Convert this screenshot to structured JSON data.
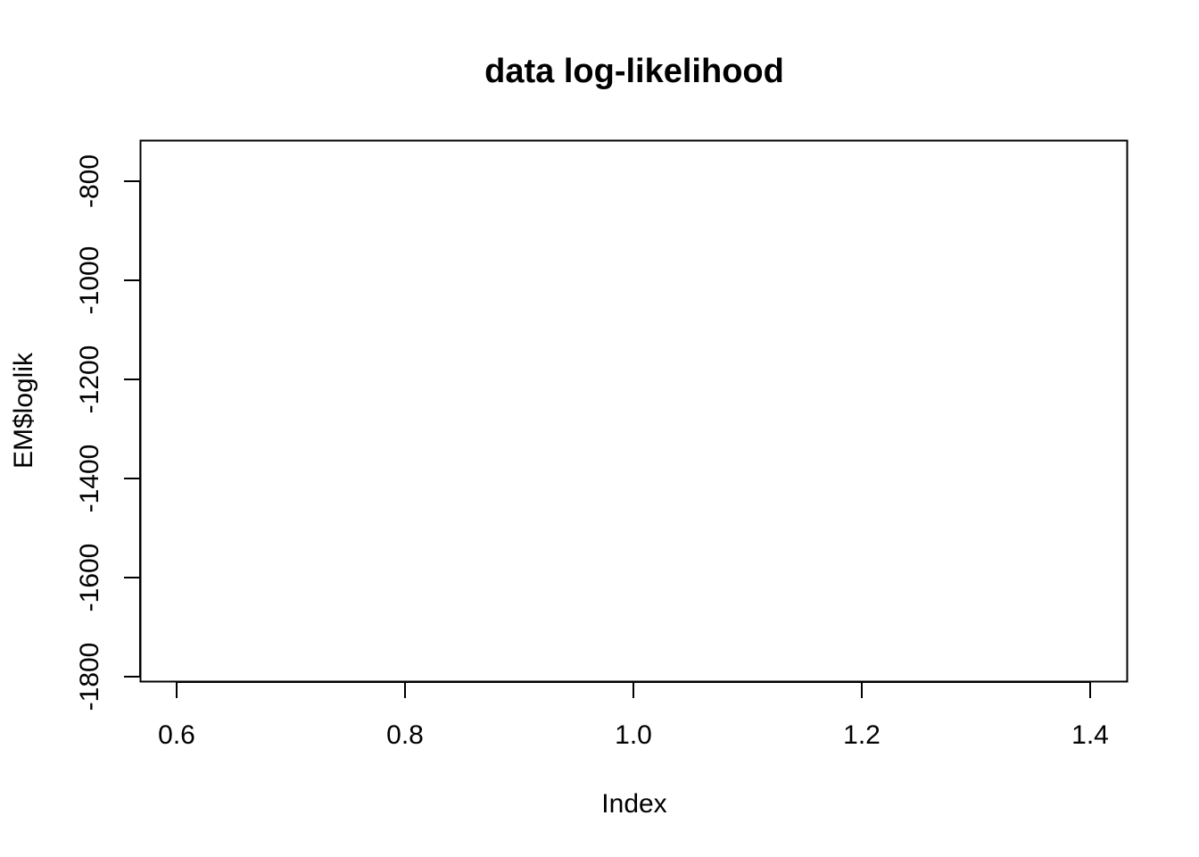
{
  "chart_data": {
    "type": "line",
    "title": "data log-likelihood",
    "xlabel": "Index",
    "ylabel": "EM$loglik",
    "xlim": [
      0.6,
      1.4
    ],
    "ylim": [
      -1800,
      -800
    ],
    "x_ticks": [
      0.6,
      0.8,
      1.0,
      1.2,
      1.4
    ],
    "x_tick_labels": [
      "0.6",
      "0.8",
      "1.0",
      "1.2",
      "1.4"
    ],
    "y_ticks": [
      -1800,
      -1600,
      -1400,
      -1200,
      -1000,
      -800
    ],
    "y_tick_labels": [
      "-1800",
      "-1600",
      "-1400",
      "-1200",
      "-1000",
      "-800"
    ],
    "grid": false,
    "series": []
  }
}
